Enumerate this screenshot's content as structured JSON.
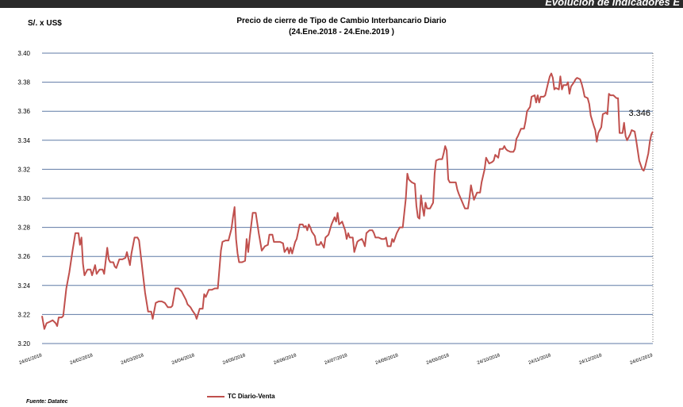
{
  "header_banner": "Evolución de Indicadores E",
  "chart_data": {
    "type": "line",
    "title": "Precio de cierre de Tipo de Cambio Interbancario Diario",
    "subtitle": "(24.Ene.2018 - 24.Ene.2019 )",
    "ylabel": "S/. x US$",
    "xlabel": "",
    "ylim": [
      3.2,
      3.4
    ],
    "yticks": [
      "3.20",
      "3.22",
      "3.24",
      "3.26",
      "3.28",
      "3.30",
      "3.32",
      "3.34",
      "3.36",
      "3.38",
      "3.40"
    ],
    "xticks": [
      "24/01/2018",
      "24/02/2018",
      "24/03/2018",
      "24/04/2018",
      "24/05/2018",
      "24/06/2018",
      "24/07/2018",
      "24/08/2018",
      "24/09/2018",
      "24/10/2018",
      "24/11/2018",
      "24/12/2018",
      "24/01/2019"
    ],
    "grid": true,
    "legend_position": "bottom",
    "series": [
      {
        "name": "TC Diario-Venta",
        "color": "#c0504d",
        "last_value_label": "3.346",
        "points": [
          [
            0,
            3.219
          ],
          [
            1.5,
            3.21
          ],
          [
            3,
            3.214
          ],
          [
            5,
            3.215
          ],
          [
            7,
            3.216
          ],
          [
            9,
            3.214
          ],
          [
            10,
            3.212
          ],
          [
            11,
            3.218
          ],
          [
            13,
            3.218
          ],
          [
            14,
            3.219
          ],
          [
            16,
            3.238
          ],
          [
            18,
            3.249
          ],
          [
            20,
            3.263
          ],
          [
            22,
            3.276
          ],
          [
            24,
            3.276
          ],
          [
            25,
            3.268
          ],
          [
            26,
            3.273
          ],
          [
            27,
            3.255
          ],
          [
            28,
            3.247
          ],
          [
            30,
            3.251
          ],
          [
            32,
            3.251
          ],
          [
            33,
            3.247
          ],
          [
            35,
            3.254
          ],
          [
            36,
            3.248
          ],
          [
            38,
            3.251
          ],
          [
            40,
            3.251
          ],
          [
            41,
            3.248
          ],
          [
            43,
            3.266
          ],
          [
            44,
            3.258
          ],
          [
            45,
            3.256
          ],
          [
            47,
            3.256
          ],
          [
            48,
            3.253
          ],
          [
            49,
            3.252
          ],
          [
            51,
            3.258
          ],
          [
            53,
            3.258
          ],
          [
            55,
            3.259
          ],
          [
            56,
            3.263
          ],
          [
            58,
            3.254
          ],
          [
            59,
            3.262
          ],
          [
            61,
            3.273
          ],
          [
            63,
            3.273
          ],
          [
            64,
            3.271
          ],
          [
            66,
            3.253
          ],
          [
            68,
            3.235
          ],
          [
            70,
            3.222
          ],
          [
            72,
            3.222
          ],
          [
            73,
            3.217
          ],
          [
            75,
            3.228
          ],
          [
            77,
            3.229
          ],
          [
            79,
            3.229
          ],
          [
            81,
            3.228
          ],
          [
            83,
            3.225
          ],
          [
            85,
            3.225
          ],
          [
            86,
            3.226
          ],
          [
            88,
            3.238
          ],
          [
            90,
            3.238
          ],
          [
            92,
            3.236
          ],
          [
            93,
            3.234
          ],
          [
            95,
            3.23
          ],
          [
            96,
            3.227
          ],
          [
            98,
            3.225
          ],
          [
            99,
            3.223
          ],
          [
            101,
            3.22
          ],
          [
            102,
            3.217
          ],
          [
            104,
            3.224
          ],
          [
            106,
            3.224
          ],
          [
            107,
            3.234
          ],
          [
            108,
            3.232
          ],
          [
            110,
            3.237
          ],
          [
            112,
            3.237
          ],
          [
            114,
            3.238
          ],
          [
            116,
            3.238
          ],
          [
            118,
            3.264
          ],
          [
            119,
            3.27
          ],
          [
            121,
            3.271
          ],
          [
            123,
            3.271
          ],
          [
            125,
            3.279
          ],
          [
            126,
            3.287
          ],
          [
            127,
            3.294
          ],
          [
            128,
            3.272
          ],
          [
            129,
            3.262
          ],
          [
            130,
            3.256
          ],
          [
            132,
            3.256
          ],
          [
            134,
            3.257
          ],
          [
            135,
            3.272
          ],
          [
            136,
            3.263
          ],
          [
            137,
            3.273
          ],
          [
            139,
            3.29
          ],
          [
            141,
            3.29
          ],
          [
            142,
            3.283
          ],
          [
            143,
            3.276
          ],
          [
            145,
            3.264
          ],
          [
            147,
            3.267
          ],
          [
            149,
            3.268
          ],
          [
            150,
            3.275
          ],
          [
            152,
            3.275
          ],
          [
            153,
            3.27
          ],
          [
            155,
            3.27
          ],
          [
            157,
            3.27
          ],
          [
            159,
            3.269
          ],
          [
            160,
            3.263
          ],
          [
            162,
            3.266
          ],
          [
            163,
            3.262
          ],
          [
            164,
            3.266
          ],
          [
            165,
            3.262
          ],
          [
            167,
            3.27
          ],
          [
            168,
            3.272
          ],
          [
            170,
            3.282
          ],
          [
            172,
            3.282
          ],
          [
            173,
            3.28
          ],
          [
            174,
            3.281
          ],
          [
            175,
            3.278
          ],
          [
            176,
            3.282
          ],
          [
            177,
            3.28
          ],
          [
            178,
            3.277
          ],
          [
            180,
            3.274
          ],
          [
            181,
            3.268
          ],
          [
            183,
            3.268
          ],
          [
            184,
            3.27
          ],
          [
            186,
            3.266
          ],
          [
            187,
            3.273
          ],
          [
            189,
            3.275
          ],
          [
            191,
            3.282
          ],
          [
            193,
            3.287
          ],
          [
            194,
            3.284
          ],
          [
            195,
            3.29
          ],
          [
            196,
            3.282
          ],
          [
            198,
            3.284
          ],
          [
            200,
            3.278
          ],
          [
            201,
            3.272
          ],
          [
            202,
            3.276
          ],
          [
            203,
            3.273
          ],
          [
            205,
            3.273
          ],
          [
            206,
            3.263
          ],
          [
            208,
            3.27
          ],
          [
            209,
            3.271
          ],
          [
            211,
            3.272
          ],
          [
            212,
            3.27
          ],
          [
            213,
            3.267
          ],
          [
            214,
            3.276
          ],
          [
            216,
            3.278
          ],
          [
            218,
            3.278
          ],
          [
            219,
            3.276
          ],
          [
            220,
            3.273
          ],
          [
            222,
            3.273
          ],
          [
            224,
            3.272
          ],
          [
            226,
            3.272
          ],
          [
            227,
            3.273
          ],
          [
            228,
            3.267
          ],
          [
            230,
            3.267
          ],
          [
            231,
            3.272
          ],
          [
            232,
            3.27
          ],
          [
            234,
            3.276
          ],
          [
            236,
            3.28
          ],
          [
            238,
            3.28
          ],
          [
            240,
            3.3
          ],
          [
            241,
            3.317
          ],
          [
            242,
            3.313
          ],
          [
            244,
            3.311
          ],
          [
            246,
            3.31
          ],
          [
            247,
            3.295
          ],
          [
            248,
            3.287
          ],
          [
            249,
            3.286
          ],
          [
            250,
            3.302
          ],
          [
            251,
            3.294
          ],
          [
            252,
            3.288
          ],
          [
            253,
            3.297
          ],
          [
            254,
            3.293
          ],
          [
            256,
            3.293
          ],
          [
            258,
            3.297
          ],
          [
            259,
            3.317
          ],
          [
            260,
            3.326
          ],
          [
            262,
            3.327
          ],
          [
            264,
            3.327
          ],
          [
            265,
            3.331
          ],
          [
            266,
            3.336
          ],
          [
            267,
            3.333
          ],
          [
            268,
            3.313
          ],
          [
            269,
            3.311
          ],
          [
            271,
            3.311
          ],
          [
            273,
            3.311
          ],
          [
            274,
            3.306
          ],
          [
            275,
            3.303
          ],
          [
            277,
            3.298
          ],
          [
            279,
            3.293
          ],
          [
            281,
            3.293
          ],
          [
            282,
            3.3
          ],
          [
            283,
            3.309
          ],
          [
            284,
            3.304
          ],
          [
            285,
            3.299
          ],
          [
            287,
            3.304
          ],
          [
            289,
            3.304
          ],
          [
            290,
            3.311
          ],
          [
            292,
            3.32
          ],
          [
            293,
            3.328
          ],
          [
            295,
            3.324
          ],
          [
            297,
            3.325
          ],
          [
            298,
            3.326
          ],
          [
            299,
            3.33
          ],
          [
            301,
            3.328
          ],
          [
            302,
            3.334
          ],
          [
            304,
            3.334
          ],
          [
            305,
            3.336
          ],
          [
            306,
            3.334
          ],
          [
            307,
            3.333
          ],
          [
            309,
            3.332
          ],
          [
            311,
            3.332
          ],
          [
            312,
            3.334
          ],
          [
            313,
            3.341
          ],
          [
            314,
            3.343
          ],
          [
            316,
            3.348
          ],
          [
            318,
            3.348
          ],
          [
            319,
            3.353
          ],
          [
            320,
            3.36
          ],
          [
            322,
            3.363
          ],
          [
            323,
            3.37
          ],
          [
            325,
            3.371
          ],
          [
            326,
            3.366
          ],
          [
            327,
            3.371
          ],
          [
            328,
            3.366
          ],
          [
            329,
            3.37
          ],
          [
            331,
            3.37
          ],
          [
            332,
            3.371
          ],
          [
            334,
            3.38
          ],
          [
            335,
            3.384
          ],
          [
            336,
            3.386
          ],
          [
            337,
            3.383
          ],
          [
            338,
            3.375
          ],
          [
            339,
            3.376
          ],
          [
            341,
            3.375
          ],
          [
            342,
            3.384
          ],
          [
            343,
            3.375
          ],
          [
            344,
            3.378
          ],
          [
            346,
            3.378
          ],
          [
            347,
            3.38
          ],
          [
            348,
            3.372
          ],
          [
            349,
            3.377
          ],
          [
            351,
            3.38
          ],
          [
            352,
            3.382
          ],
          [
            353,
            3.383
          ],
          [
            355,
            3.382
          ],
          [
            356,
            3.379
          ],
          [
            357,
            3.375
          ],
          [
            358,
            3.37
          ],
          [
            360,
            3.369
          ],
          [
            361,
            3.365
          ],
          [
            362,
            3.357
          ],
          [
            364,
            3.35
          ],
          [
            365,
            3.347
          ],
          [
            366,
            3.339
          ],
          [
            367,
            3.345
          ],
          [
            369,
            3.349
          ],
          [
            370,
            3.358
          ],
          [
            372,
            3.359
          ],
          [
            373,
            3.358
          ],
          [
            374,
            3.372
          ],
          [
            375,
            3.371
          ],
          [
            377,
            3.371
          ],
          [
            379,
            3.369
          ],
          [
            380,
            3.369
          ],
          [
            381,
            3.345
          ],
          [
            383,
            3.345
          ],
          [
            384,
            3.352
          ],
          [
            385,
            3.343
          ],
          [
            386,
            3.34
          ],
          [
            388,
            3.344
          ],
          [
            389,
            3.347
          ],
          [
            391,
            3.346
          ],
          [
            392,
            3.34
          ],
          [
            393,
            3.333
          ],
          [
            394,
            3.326
          ],
          [
            396,
            3.32
          ],
          [
            397,
            3.319
          ],
          [
            398,
            3.322
          ],
          [
            400,
            3.331
          ],
          [
            401,
            3.339
          ],
          [
            402,
            3.344
          ],
          [
            403,
            3.346
          ]
        ]
      }
    ]
  },
  "footer": {
    "source": "Fuente: Datatec"
  }
}
